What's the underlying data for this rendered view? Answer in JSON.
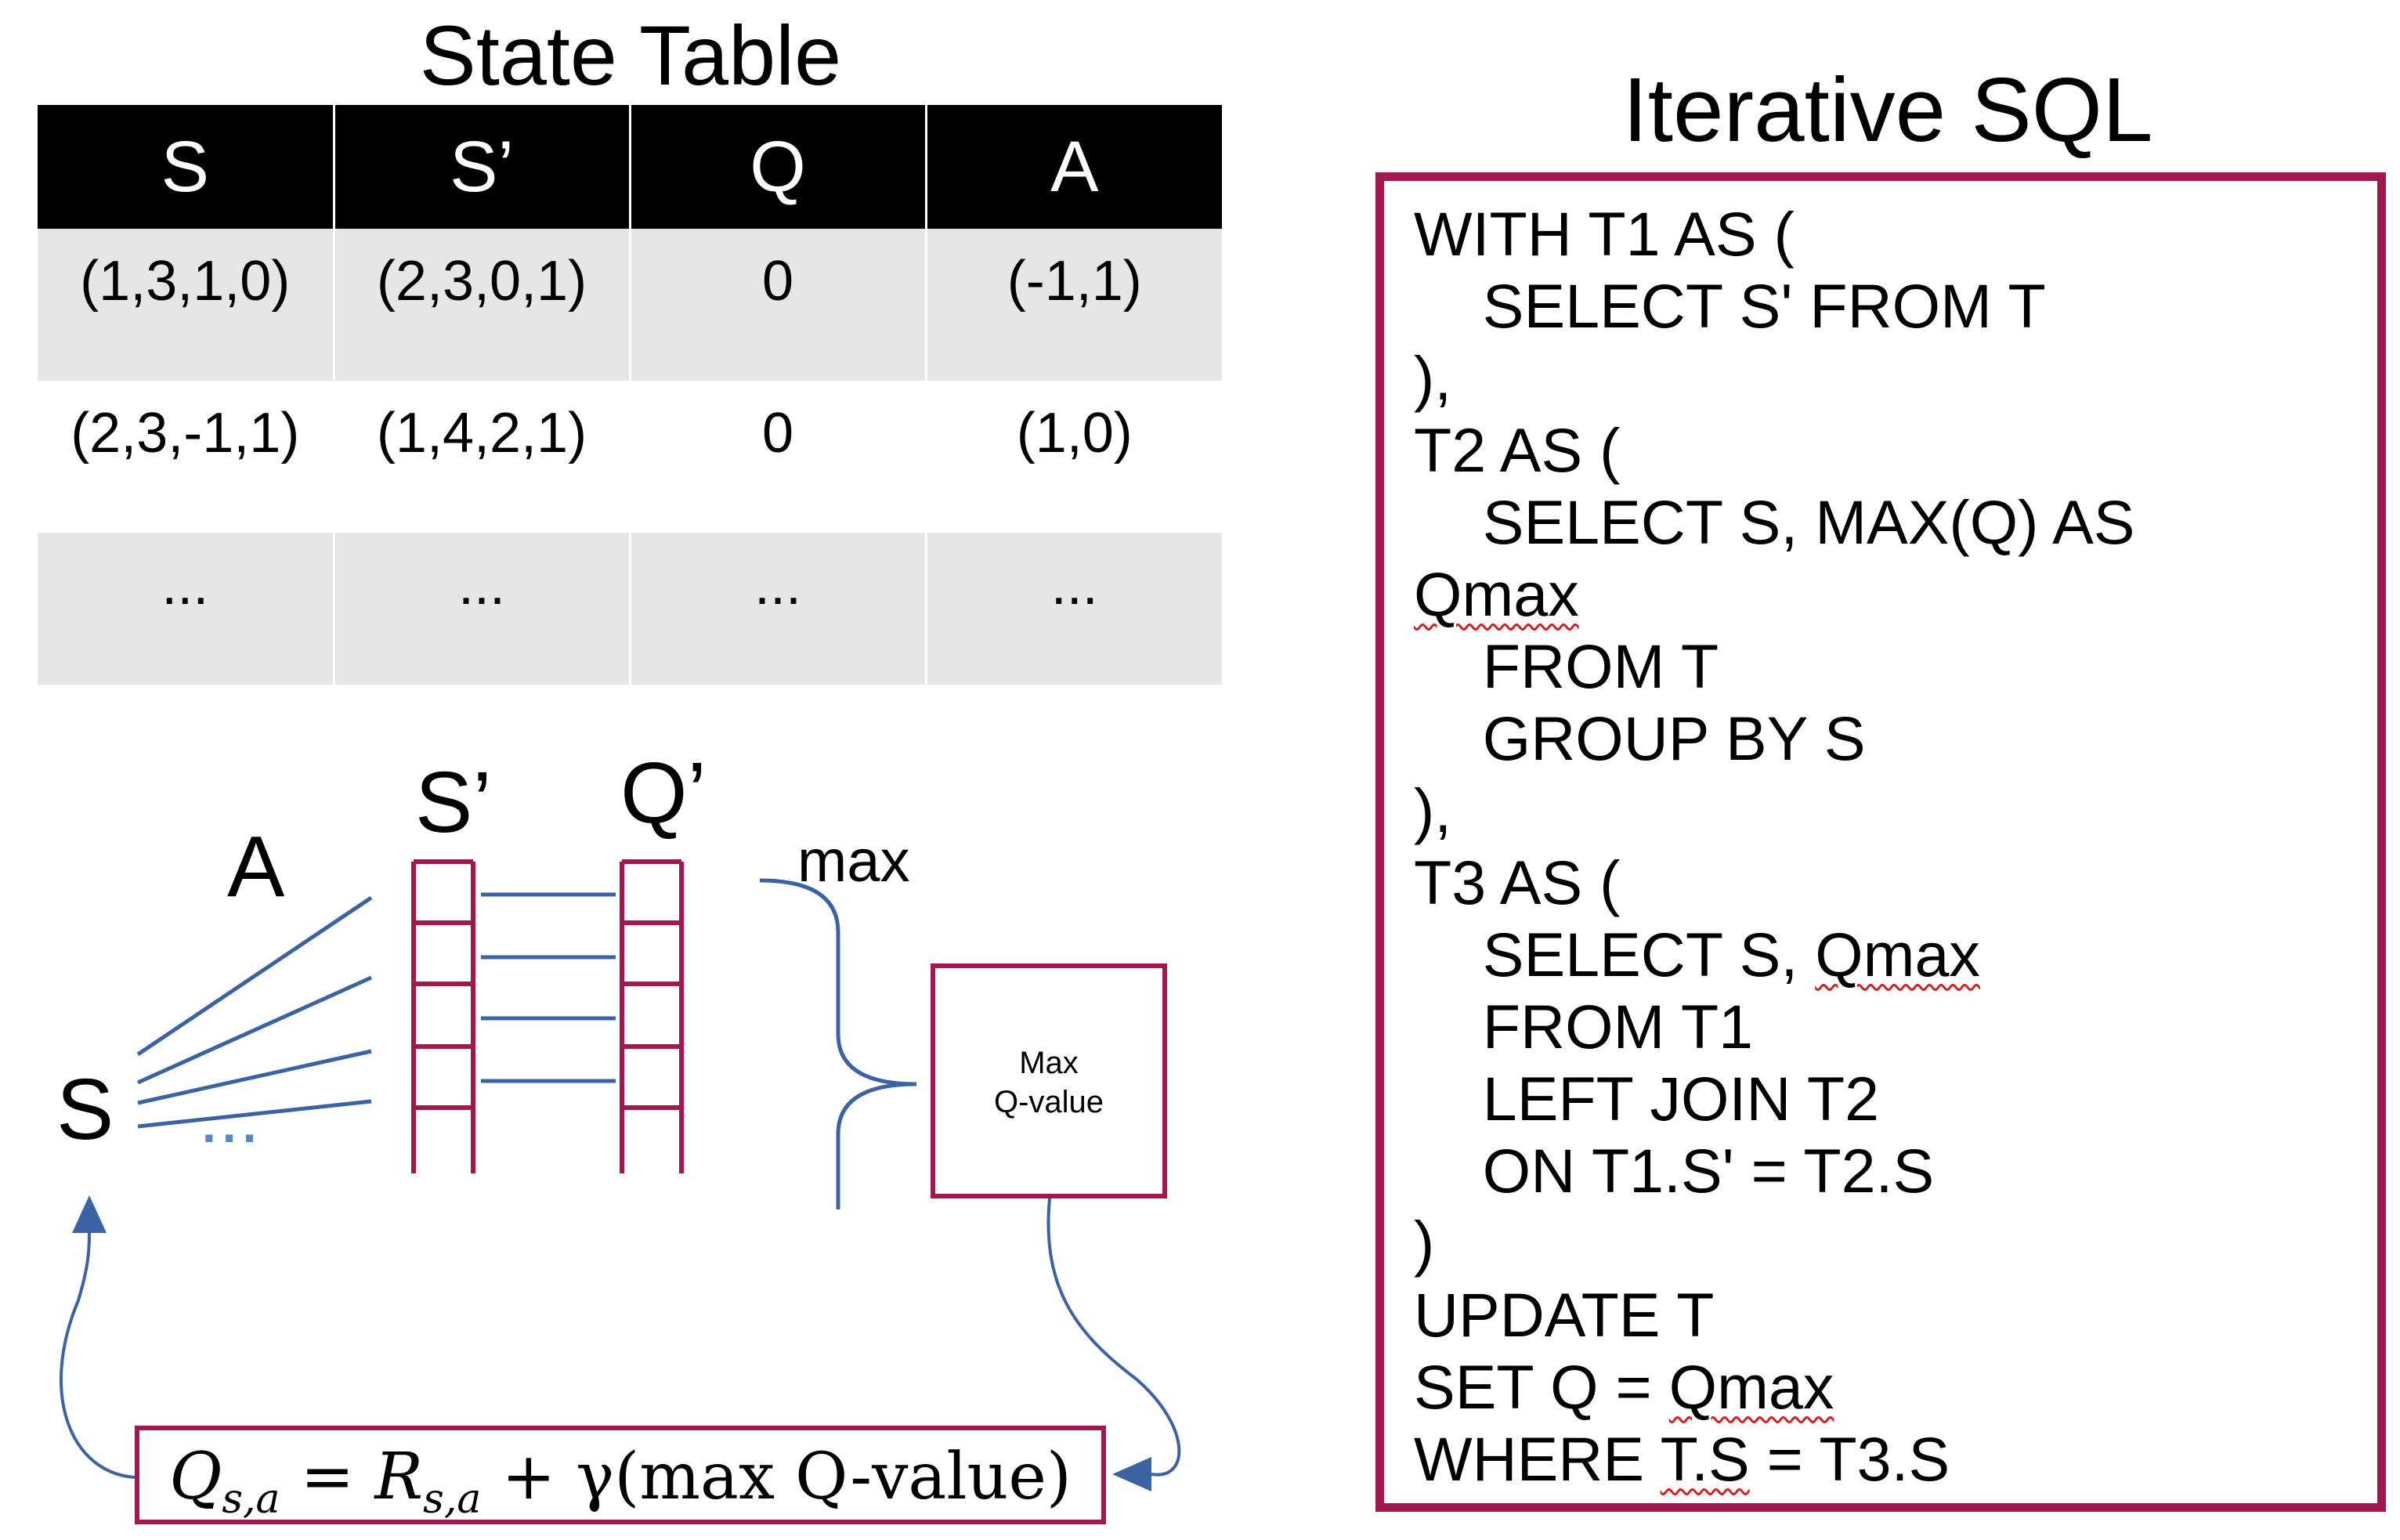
{
  "state_table": {
    "title": "State Table",
    "columns": [
      "S",
      "S’",
      "Q",
      "A"
    ],
    "rows": [
      [
        "(1,3,1,0)",
        "(2,3,0,1)",
        "0",
        "(-1,1)"
      ],
      [
        "(2,3,-1,1)",
        "(1,4,2,1)",
        "0",
        "(1,0)"
      ],
      [
        "...",
        "...",
        "...",
        "..."
      ]
    ]
  },
  "diagram": {
    "labels": {
      "s": "S",
      "a": "A",
      "s_prime": "S’",
      "q_prime": "Q’",
      "max": "max",
      "ellipsis": "..."
    },
    "max_q_box": {
      "line1": "Max",
      "line2": "Q-value"
    },
    "formula": {
      "lhs": "Q",
      "lhs_sub": "s,a",
      "eq": " = ",
      "r": "R",
      "r_sub": "s,a",
      "plus": " + ",
      "gamma_expr": "γ(max Q-value)"
    },
    "colors": {
      "frame": "#a3174f",
      "line": "#3b63a3"
    }
  },
  "sql": {
    "title": "Iterative SQL",
    "lines": [
      "WITH T1 AS (",
      "    SELECT S' FROM T",
      "),",
      "T2 AS (",
      "    SELECT S, MAX(Q) AS",
      "Qmax",
      "    FROM T",
      "    GROUP BY S",
      "),",
      "T3 AS (",
      "    SELECT S, ",
      "Qmax",
      "    FROM T1",
      "    LEFT JOIN T2",
      "    ON T1.S' = T2.S",
      ")",
      "UPDATE T",
      "SET Q = ",
      "Qmax",
      "WHERE ",
      "T.S",
      " = T3.S"
    ]
  }
}
